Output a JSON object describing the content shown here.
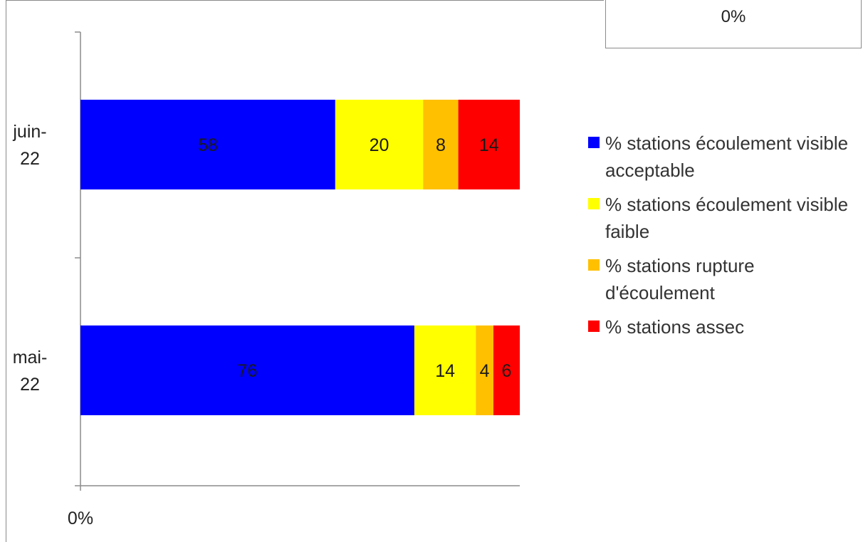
{
  "corner_box": {
    "label": "0%"
  },
  "chart_data": {
    "type": "bar",
    "orientation": "horizontal",
    "stacked": true,
    "categories": [
      "juin-22",
      "mai-22"
    ],
    "category_lines": [
      [
        "juin-",
        "22"
      ],
      [
        "mai-",
        "22"
      ]
    ],
    "series": [
      {
        "name": "% stations écoulement visible acceptable",
        "color": "#0000ff",
        "values": [
          58,
          76
        ]
      },
      {
        "name": "% stations écoulement visible faible",
        "color": "#ffff00",
        "values": [
          20,
          14
        ]
      },
      {
        "name": "% stations rupture d'écoulement",
        "color": "#ffc000",
        "values": [
          8,
          4
        ]
      },
      {
        "name": "% stations assec",
        "color": "#ff0000",
        "values": [
          14,
          6
        ]
      }
    ],
    "x_tick_labels": [
      "0%"
    ],
    "xlim": [
      0,
      100
    ],
    "legend_position": "right",
    "grid": false
  },
  "legend": {
    "items": [
      {
        "label": "% stations écoulement visible acceptable",
        "color": "#0000ff"
      },
      {
        "label": "% stations écoulement visible faible",
        "color": "#ffff00"
      },
      {
        "label": "% stations rupture d'écoulement",
        "color": "#ffc000"
      },
      {
        "label": "% stations assec",
        "color": "#ff0000"
      }
    ]
  }
}
